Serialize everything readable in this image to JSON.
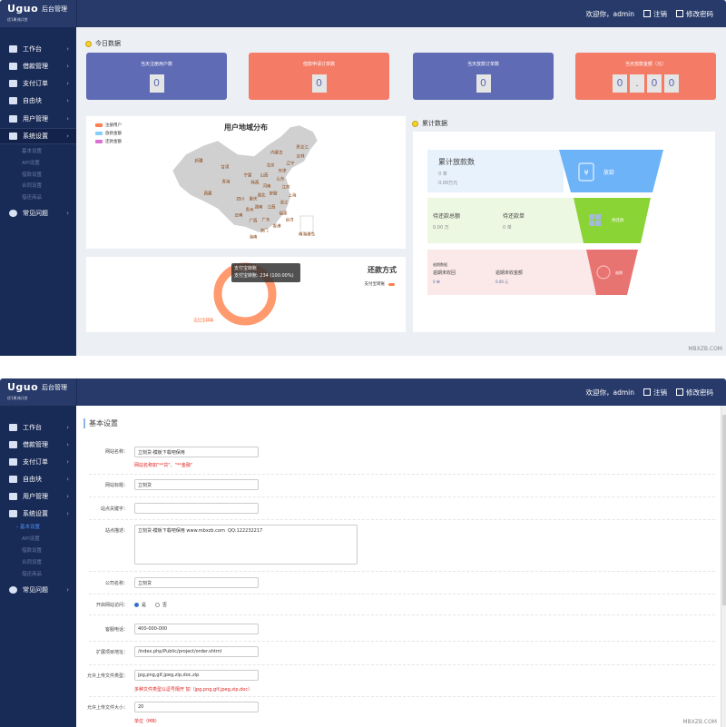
{
  "header": {
    "brand": "Uguо",
    "app_title": "后台管理",
    "brand_sub": "优1果|电1贷",
    "welcome": "欢迎你，admin",
    "logout": "注销",
    "change_password": "修改密码"
  },
  "sidebar": {
    "items": [
      {
        "label": "工作台",
        "icon": "monitor-icon"
      },
      {
        "label": "借款管理",
        "icon": "document-icon"
      },
      {
        "label": "支付订单",
        "icon": "card-icon"
      },
      {
        "label": "自由块",
        "icon": "grid-icon"
      },
      {
        "label": "用户管理",
        "icon": "user-icon"
      },
      {
        "label": "系统设置",
        "icon": "windows-icon"
      },
      {
        "label": "常见问题",
        "icon": "help-icon"
      }
    ],
    "sub_items": [
      "基本设置",
      "API设置",
      "借款设置",
      "合同设置",
      "借还商品"
    ]
  },
  "dashboard": {
    "today_title": "今日数据",
    "cards": [
      {
        "label": "当天注册用户数",
        "digits": [
          "0"
        ],
        "color": "#5f6bb5"
      },
      {
        "label": "借款申请订单数",
        "digits": [
          "0"
        ],
        "color": "#f47c67"
      },
      {
        "label": "当天放款订单数",
        "digits": [
          "0"
        ],
        "color": "#5f6bb5"
      },
      {
        "label": "当天放款金额（元）",
        "digits": [
          "0",
          ".",
          "0",
          "0"
        ],
        "color": "#f47c67"
      }
    ],
    "map": {
      "title": "用户地域分布",
      "legend": [
        {
          "name": "注册用户",
          "color": "#ff7f50"
        },
        {
          "name": "放款金额",
          "color": "#87cefa"
        },
        {
          "name": "还款金额",
          "color": "#da70d6"
        }
      ],
      "provinces": [
        "新疆",
        "甘肃",
        "青海",
        "西藏",
        "内蒙古",
        "黑龙江",
        "吉林",
        "辽宁",
        "北京",
        "天津",
        "山西",
        "山东",
        "宁夏",
        "陕西",
        "河南",
        "江苏",
        "安徽",
        "上海",
        "湖北",
        "四川",
        "重庆",
        "浙江",
        "贵州",
        "湖南",
        "江西",
        "福建",
        "云南",
        "广西",
        "广东",
        "台湾",
        "香港",
        "澳门",
        "海南",
        "南海诸岛"
      ]
    },
    "pie": {
      "title": "还款方式",
      "legend": "支付宝转账",
      "label": "支付宝转账",
      "tooltip_title": "支付宝转账",
      "tooltip_value": "支付宝转账: 234 (100.00%)",
      "color": "#ff9a6e"
    },
    "cumulative": {
      "title": "累计数据",
      "loan": {
        "title": "累计放款数",
        "count": "0 单",
        "amount": "0.00万元",
        "tag": "放款",
        "color": "#6db3f8",
        "bg": "#e8f2fd"
      },
      "pending": {
        "total_label": "待还款总额",
        "total_value": "0.00 万",
        "orders_label": "待还款单",
        "orders_value": "0 单",
        "tag": "待还款",
        "color": "#8ad436",
        "bg": "#edf8e2"
      },
      "overdue": {
        "title": "逾期数据",
        "uncollected_label": "逾期未收回",
        "uncollected_value": "0 单",
        "amount_label": "逾期未收金额",
        "amount_value": "0.00 元",
        "tag": "逾期",
        "color": "#e87471",
        "bg": "#fbe9ea"
      }
    },
    "watermark": "MBXZB.COM"
  },
  "settings": {
    "title": "基本设置",
    "site_name": {
      "label": "网站名称：",
      "value": "立刻贷-模板下载吧保用",
      "hint": "网站名称如\"**贷\"、\"**金融\""
    },
    "site_title": {
      "label": "网站标题：",
      "value": "立刻贷"
    },
    "keywords": {
      "label": "站点关键字：",
      "value": ""
    },
    "description": {
      "label": "站点描述：",
      "value": "立刻贷-模板下载吧保用 www.mbxzb.com  QQ:122232217"
    },
    "company": {
      "label": "公司名称：",
      "value": "立刻贷"
    },
    "site_open": {
      "label": "开启网站访问：",
      "options": [
        "是",
        "否"
      ],
      "selected": "是"
    },
    "phone": {
      "label": "客服电话：",
      "value": "400-000-000"
    },
    "project_url": {
      "label": "扩展项目地址：",
      "value": "/index.php/Public/project/order.shtml"
    },
    "file_types": {
      "label": "允许上传文件类型：",
      "value": "jpg,png,gif,jpeg,zip,doc,zip",
      "hint": "多种文件类型以逗号隔开 如（jpg,png,gif,jpeg,zip,doc）"
    },
    "file_size": {
      "label": "允许上传文件大小：",
      "value": "20",
      "hint": "单位（MB）"
    },
    "watermark": "MBXZB.COM"
  }
}
